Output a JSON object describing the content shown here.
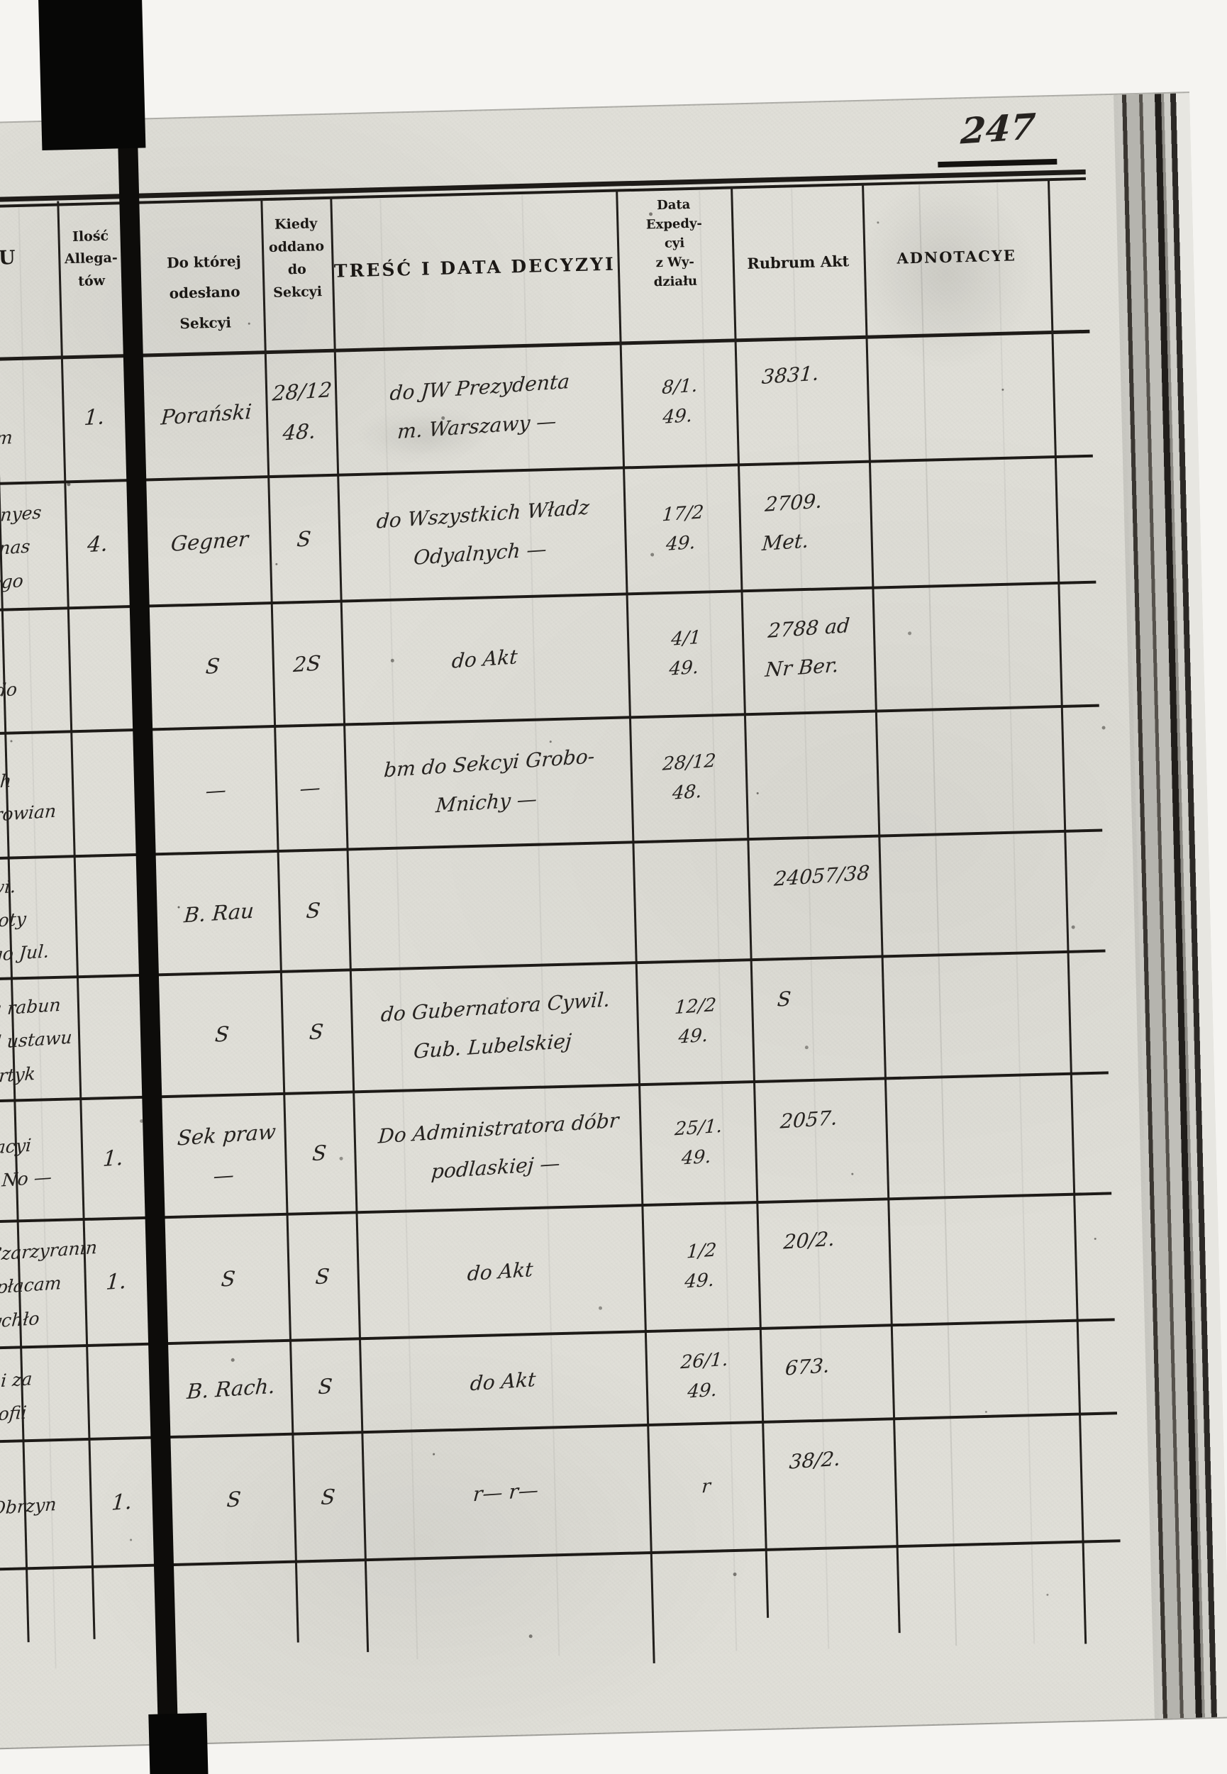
{
  "page": {
    "number": "247"
  },
  "left_margin": {
    "u_header": "U",
    "allegata_header": "Ilość\nAllega-\ntów",
    "rows": [
      {
        "fragment": "ty\nDram",
        "allegata": "1."
      },
      {
        "fragment": "Tronyes\nBernas\ntórego",
        "allegata": "4."
      },
      {
        "fragment": "bis\nus do",
        "allegata": ""
      },
      {
        "fragment": "iych\nborowian",
        "allegata": ""
      },
      {
        "fragment": "awi.\noboty\ntego Jul.",
        "allegata": ""
      },
      {
        "fragment": "za rabun\nod ustawu\nFortyk",
        "allegata": ""
      },
      {
        "fragment": "nacyi\nw No —",
        "allegata": "1."
      },
      {
        "fragment": "Czarzyranin\nopłacam\nrychło",
        "allegata": "1."
      },
      {
        "fragment": "ni za\npofii",
        "allegata": ""
      },
      {
        "fragment": "Obrzyn",
        "allegata": "1."
      }
    ]
  },
  "table": {
    "headers": {
      "sekcya": "Do której\nodesłano Sekcyi",
      "kiedy": "Kiedy\noddano\ndo\nSekcyi",
      "tresc": "TREŚĆ I DATA DECYZYI",
      "expedycya": "Data\nExpedy-\ncyi\nz Wy-\ndziału",
      "rubrum": "Rubrum Akt",
      "adnotacye": "ADNOTACYE"
    },
    "rows": [
      {
        "sekcya": "Porański",
        "kiedy": "28/12\n48.",
        "tresc": "do JW Prezydenta\nm. Warszawy —",
        "expedycya": "8/1.\n49.",
        "rubrum": "3831.",
        "adnotacye": ""
      },
      {
        "sekcya": "Gegner",
        "kiedy": "S",
        "tresc": "do Wszystkich Władz\nOdyalnych —",
        "expedycya": "17/2\n49.",
        "rubrum": "2709. Met.",
        "adnotacye": ""
      },
      {
        "sekcya": "S",
        "kiedy": "2S",
        "tresc": "do Akt",
        "expedycya": "4/1\n49.",
        "rubrum": "2788 ad Nr Ber.",
        "adnotacye": ""
      },
      {
        "sekcya": "—",
        "kiedy": "—",
        "tresc": "bm do Sekcyi Grobo-\nMnichy —",
        "expedycya": "28/12\n48.",
        "rubrum": "",
        "adnotacye": ""
      },
      {
        "sekcya": "B. Rau",
        "kiedy": "S",
        "tresc": "",
        "expedycya": "",
        "rubrum": "24057/38",
        "adnotacye": ""
      },
      {
        "sekcya": "S",
        "kiedy": "S",
        "tresc": "do Gubernatora Cywil.\nGub. Lubelskiej",
        "expedycya": "12/2\n49.",
        "rubrum": "S",
        "adnotacye": ""
      },
      {
        "sekcya": "Sek praw —",
        "kiedy": "S",
        "tresc": "Do Administratora dóbr\npodlaskiej —",
        "expedycya": "25/1.\n49.",
        "rubrum": "2057.",
        "adnotacye": ""
      },
      {
        "sekcya": "S",
        "kiedy": "S",
        "tresc": "do Akt",
        "expedycya": "1/2\n49.",
        "rubrum": "20/2.",
        "adnotacye": ""
      },
      {
        "sekcya": "B. Rach.",
        "kiedy": "S",
        "tresc": "do Akt",
        "expedycya": "26/1.\n49.",
        "rubrum": "673.",
        "adnotacye": ""
      },
      {
        "sekcya": "S",
        "kiedy": "S",
        "tresc": "r—   r—",
        "expedycya": "r",
        "rubrum": "38/2.",
        "adnotacye": ""
      }
    ]
  }
}
